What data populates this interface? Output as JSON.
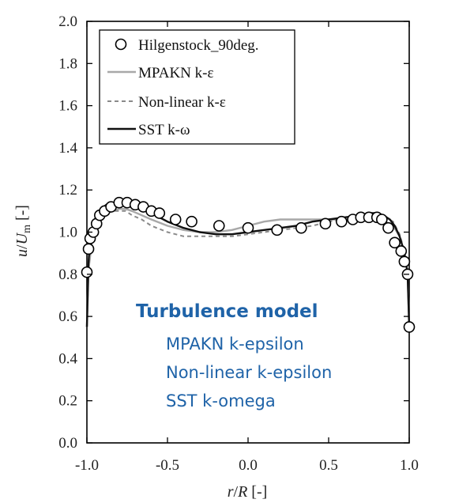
{
  "chart_data": {
    "type": "line",
    "xlabel": {
      "italic": "r",
      "sep": "/",
      "italic2": "R",
      "unit": " [-]"
    },
    "ylabel": {
      "italic": "u",
      "sep": "/",
      "italic2": "U",
      "sub": "m",
      "unit": " [-]"
    },
    "xlim": [
      -1.0,
      1.0
    ],
    "ylim": [
      0.0,
      2.0
    ],
    "xticks": [
      "-1.0",
      "-0.5",
      "0.0",
      "0.5",
      "1.0"
    ],
    "yticks": [
      "0.0",
      "0.2",
      "0.4",
      "0.6",
      "0.8",
      "1.0",
      "1.2",
      "1.4",
      "1.6",
      "1.8",
      "2.0"
    ],
    "grid": false,
    "legend_position": "top-left",
    "series": [
      {
        "name": "Hilgenstock_90deg.",
        "style": "markers",
        "color": "#000000",
        "x": [
          -1.0,
          -0.99,
          -0.98,
          -0.96,
          -0.94,
          -0.92,
          -0.89,
          -0.85,
          -0.8,
          -0.75,
          -0.7,
          -0.65,
          -0.6,
          -0.55,
          -0.45,
          -0.35,
          -0.18,
          0.0,
          0.18,
          0.33,
          0.48,
          0.58,
          0.65,
          0.7,
          0.75,
          0.8,
          0.83,
          0.87,
          0.91,
          0.95,
          0.97,
          0.99,
          1.0
        ],
        "y": [
          0.81,
          0.92,
          0.97,
          1.0,
          1.04,
          1.08,
          1.1,
          1.12,
          1.14,
          1.14,
          1.13,
          1.12,
          1.1,
          1.09,
          1.06,
          1.05,
          1.03,
          1.02,
          1.01,
          1.02,
          1.04,
          1.05,
          1.06,
          1.07,
          1.07,
          1.07,
          1.06,
          1.02,
          0.95,
          0.91,
          0.86,
          0.8,
          0.55
        ]
      },
      {
        "name": "MPAKN k-ε",
        "style": "solid",
        "color": "#a8a8a8",
        "x": [
          -1.0,
          -0.99,
          -0.97,
          -0.95,
          -0.92,
          -0.88,
          -0.84,
          -0.8,
          -0.76,
          -0.72,
          -0.66,
          -0.6,
          -0.5,
          -0.4,
          -0.3,
          -0.2,
          -0.1,
          0.0,
          0.1,
          0.2,
          0.3,
          0.4,
          0.5,
          0.6,
          0.7,
          0.8,
          0.85,
          0.9,
          0.94,
          0.97,
          0.99,
          1.0
        ],
        "y": [
          0.55,
          0.82,
          0.95,
          1.02,
          1.06,
          1.09,
          1.1,
          1.11,
          1.11,
          1.1,
          1.08,
          1.06,
          1.03,
          1.01,
          1.0,
          1.0,
          1.01,
          1.03,
          1.05,
          1.06,
          1.06,
          1.06,
          1.06,
          1.06,
          1.06,
          1.06,
          1.05,
          1.03,
          0.98,
          0.9,
          0.8,
          0.55
        ]
      },
      {
        "name": "Non-linear k-ε",
        "style": "dashed",
        "color": "#8a8a8a",
        "x": [
          -1.0,
          -0.99,
          -0.97,
          -0.95,
          -0.92,
          -0.88,
          -0.84,
          -0.8,
          -0.76,
          -0.72,
          -0.66,
          -0.6,
          -0.5,
          -0.4,
          -0.3,
          -0.2,
          -0.1,
          0.0,
          0.1,
          0.2,
          0.3,
          0.4,
          0.5,
          0.6,
          0.7,
          0.8,
          0.85,
          0.9,
          0.94,
          0.97,
          0.99,
          1.0
        ],
        "y": [
          0.55,
          0.83,
          0.97,
          1.03,
          1.07,
          1.09,
          1.1,
          1.1,
          1.1,
          1.08,
          1.06,
          1.03,
          1.0,
          0.98,
          0.98,
          0.98,
          0.98,
          0.99,
          1.0,
          1.01,
          1.02,
          1.03,
          1.05,
          1.06,
          1.07,
          1.08,
          1.07,
          1.05,
          0.99,
          0.91,
          0.81,
          0.55
        ]
      },
      {
        "name": "SST k-ω",
        "style": "solid",
        "color": "#111111",
        "x": [
          -1.0,
          -0.99,
          -0.98,
          -0.96,
          -0.94,
          -0.91,
          -0.88,
          -0.84,
          -0.8,
          -0.76,
          -0.72,
          -0.68,
          -0.6,
          -0.5,
          -0.4,
          -0.3,
          -0.2,
          -0.1,
          0.0,
          0.1,
          0.2,
          0.3,
          0.4,
          0.5,
          0.6,
          0.7,
          0.76,
          0.8,
          0.84,
          0.88,
          0.91,
          0.94,
          0.96,
          0.98,
          0.99,
          1.0
        ],
        "y": [
          0.55,
          0.85,
          0.98,
          1.04,
          1.08,
          1.11,
          1.13,
          1.14,
          1.14,
          1.14,
          1.13,
          1.12,
          1.09,
          1.05,
          1.02,
          1.0,
          0.99,
          0.99,
          1.0,
          1.01,
          1.02,
          1.03,
          1.05,
          1.06,
          1.07,
          1.08,
          1.09,
          1.09,
          1.08,
          1.06,
          1.03,
          0.98,
          0.93,
          0.86,
          0.79,
          0.55
        ]
      }
    ]
  },
  "annotation": {
    "title": "Turbulence model",
    "items": [
      "MPAKN k-epsilon",
      "Non-linear k-epsilon",
      "SST k-omega"
    ]
  }
}
